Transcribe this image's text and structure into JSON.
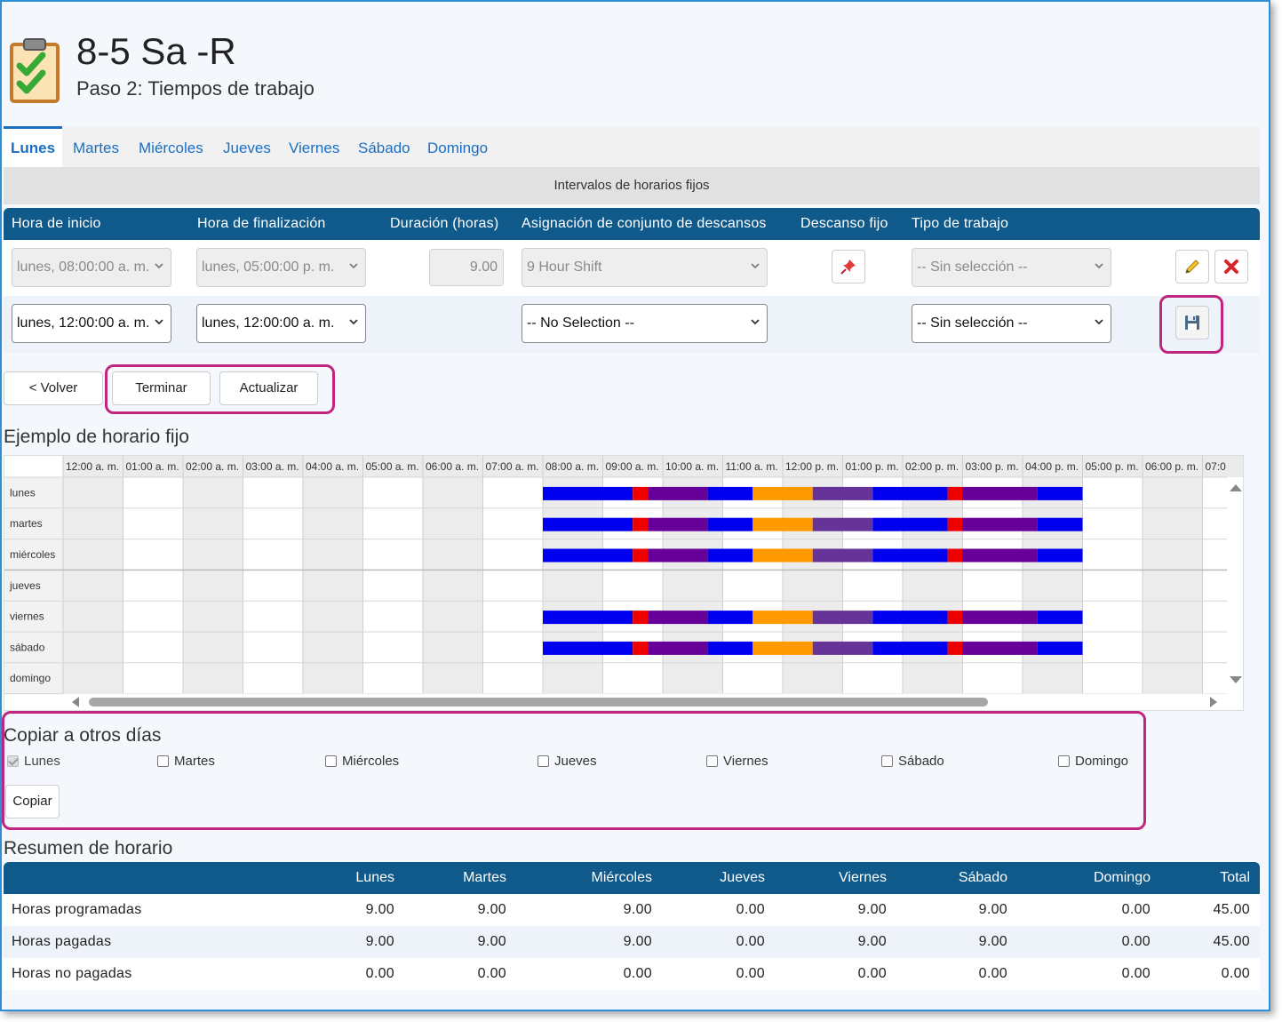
{
  "header": {
    "title": "8-5 Sa -R",
    "subtitle": "Paso 2: Tiempos de trabajo",
    "icon": "clipboard-checklist-icon"
  },
  "tabs": [
    {
      "label": "Lunes",
      "active": true
    },
    {
      "label": "Martes"
    },
    {
      "label": "Miércoles"
    },
    {
      "label": "Jueves"
    },
    {
      "label": "Viernes"
    },
    {
      "label": "Sábado"
    },
    {
      "label": "Domingo"
    }
  ],
  "intervals": {
    "section_title": "Intervalos de horarios fijos",
    "columns": [
      "Hora de inicio",
      "Hora de finalización",
      "Duración (horas)",
      "Asignación de conjunto de descansos",
      "Descanso fijo",
      "Tipo de trabajo"
    ],
    "rows": [
      {
        "start": "lunes, 08:00:00 a. m.",
        "end": "lunes, 05:00:00 p. m.",
        "duration": "9.00",
        "break_set": "9 Hour Shift",
        "fixed_break_icon": "pin-icon",
        "work_type": "-- Sin selección --",
        "edit_icon": "pencil-icon",
        "delete_icon": "delete-x-icon"
      }
    ],
    "new_row": {
      "start": "lunes, 12:00:00 a. m.",
      "end": "lunes, 12:00:00 a. m.",
      "break_set": "-- No Selection --",
      "work_type": "-- Sin selección --",
      "save_icon": "floppy-disk-icon"
    }
  },
  "buttons": {
    "back": "< Volver",
    "finish": "Terminar",
    "update": "Actualizar",
    "copy": "Copiar"
  },
  "example": {
    "title": "Ejemplo de horario fijo",
    "hours": [
      "12:00 a. m.",
      "01:00 a. m.",
      "02:00 a. m.",
      "03:00 a. m.",
      "04:00 a. m.",
      "05:00 a. m.",
      "06:00 a. m.",
      "07:00 a. m.",
      "08:00 a. m.",
      "09:00 a. m.",
      "10:00 a. m.",
      "11:00 a. m.",
      "12:00 p. m.",
      "01:00 p. m.",
      "02:00 p. m.",
      "03:00 p. m.",
      "04:00 p. m.",
      "05:00 p. m.",
      "06:00 p. m.",
      "07:0"
    ],
    "days": [
      {
        "name": "lunes",
        "scheduled": true
      },
      {
        "name": "martes",
        "scheduled": true
      },
      {
        "name": "miércoles",
        "scheduled": true
      },
      {
        "name": "jueves",
        "scheduled": false
      },
      {
        "name": "viernes",
        "scheduled": true
      },
      {
        "name": "sábado",
        "scheduled": true
      },
      {
        "name": "domingo",
        "scheduled": false
      }
    ],
    "segments_hours": [
      {
        "from": 8.0,
        "to": 9.5,
        "color": "#0000ee"
      },
      {
        "from": 9.5,
        "to": 9.75,
        "color": "#ee0000"
      },
      {
        "from": 9.75,
        "to": 10.75,
        "color": "#660099"
      },
      {
        "from": 10.75,
        "to": 11.5,
        "color": "#0000ee"
      },
      {
        "from": 11.5,
        "to": 12.5,
        "color": "#ff9900"
      },
      {
        "from": 12.5,
        "to": 13.5,
        "color": "#663399"
      },
      {
        "from": 13.5,
        "to": 14.75,
        "color": "#0000ee"
      },
      {
        "from": 14.75,
        "to": 15.0,
        "color": "#ee0000"
      },
      {
        "from": 15.0,
        "to": 16.25,
        "color": "#660099"
      },
      {
        "from": 16.25,
        "to": 17.0,
        "color": "#0000ee"
      }
    ]
  },
  "copy_section": {
    "title": "Copiar a otros días",
    "days": [
      {
        "label": "Lunes",
        "checked": true,
        "disabled": true
      },
      {
        "label": "Martes",
        "checked": false
      },
      {
        "label": "Miércoles",
        "checked": false
      },
      {
        "label": "Jueves",
        "checked": false
      },
      {
        "label": "Viernes",
        "checked": false
      },
      {
        "label": "Sábado",
        "checked": false
      },
      {
        "label": "Domingo",
        "checked": false
      }
    ]
  },
  "summary": {
    "title": "Resumen de horario",
    "columns": [
      "Lunes",
      "Martes",
      "Miércoles",
      "Jueves",
      "Viernes",
      "Sábado",
      "Domingo",
      "Total"
    ],
    "rows": [
      {
        "label": "Horas programadas",
        "values": [
          "9.00",
          "9.00",
          "9.00",
          "0.00",
          "9.00",
          "9.00",
          "0.00",
          "45.00"
        ]
      },
      {
        "label": "Horas pagadas",
        "values": [
          "9.00",
          "9.00",
          "9.00",
          "0.00",
          "9.00",
          "9.00",
          "0.00",
          "45.00"
        ]
      },
      {
        "label": "Horas no pagadas",
        "values": [
          "0.00",
          "0.00",
          "0.00",
          "0.00",
          "0.00",
          "0.00",
          "0.00",
          "0.00"
        ]
      }
    ]
  }
}
